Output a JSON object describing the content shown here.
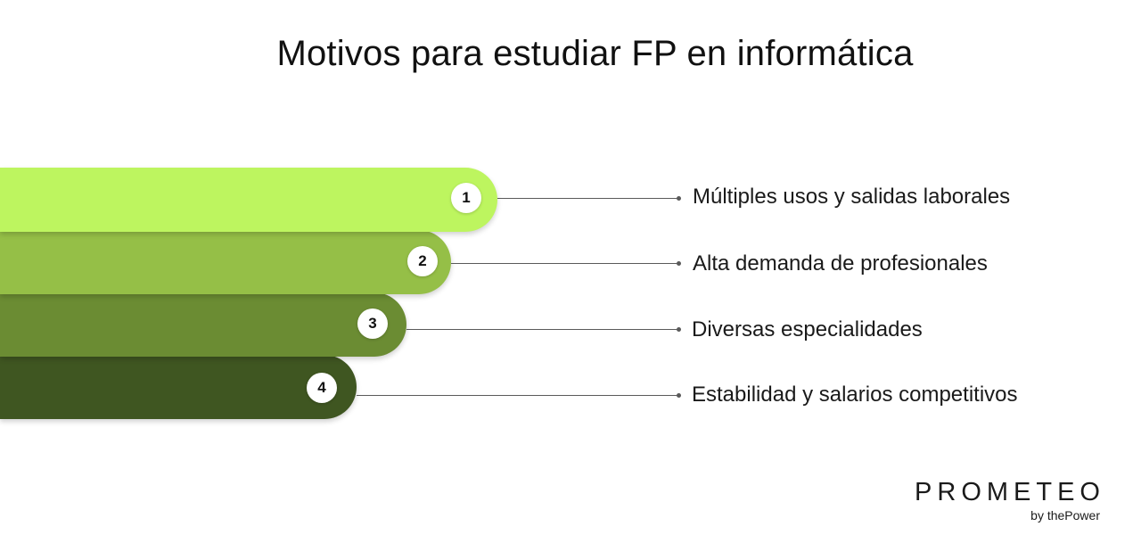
{
  "title": "Motivos para estudiar FP en informática",
  "items": [
    {
      "number": "1",
      "label": "Múltiples usos y salidas laborales",
      "color": "#bdf55f"
    },
    {
      "number": "2",
      "label": "Alta demanda de profesionales",
      "color": "#95bf47"
    },
    {
      "number": "3",
      "label": "Diversas especialidades",
      "color": "#6b8c33"
    },
    {
      "number": "4",
      "label": "Estabilidad y salarios competitivos",
      "color": "#3f5621"
    }
  ],
  "logo": {
    "name": "PROMETEO",
    "tagline": "by thePower"
  }
}
